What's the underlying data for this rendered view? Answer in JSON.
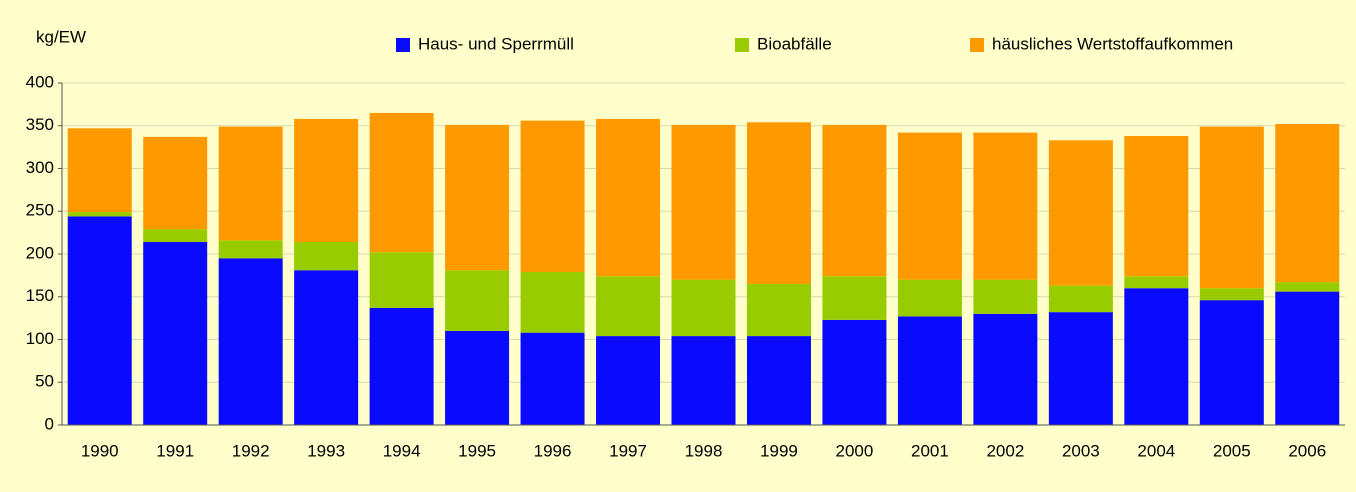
{
  "chart_data": {
    "type": "stacked_bar",
    "ylabel": "kg/EW",
    "categories": [
      "1990",
      "1991",
      "1992",
      "1993",
      "1994",
      "1995",
      "1996",
      "1997",
      "1998",
      "1999",
      "2000",
      "2001",
      "2002",
      "2003",
      "2004",
      "2005",
      "2006"
    ],
    "series": [
      {
        "name": "Haus- und Sperrmüll",
        "color": "#0a0aff",
        "values": [
          244,
          214,
          195,
          181,
          137,
          110,
          108,
          104,
          104,
          104,
          123,
          127,
          130,
          132,
          160,
          146,
          156
        ]
      },
      {
        "name": "Bioabfälle",
        "color": "#99cc00",
        "values": [
          5,
          15,
          21,
          33,
          65,
          71,
          71,
          70,
          66,
          61,
          51,
          43,
          40,
          31,
          14,
          14,
          11
        ]
      },
      {
        "name": "häusliches Wertstoffaufkommen",
        "color": "#ff9900",
        "values": [
          98,
          108,
          133,
          144,
          163,
          170,
          177,
          184,
          181,
          189,
          177,
          172,
          172,
          170,
          164,
          189,
          185
        ]
      }
    ],
    "ylim": [
      0,
      400
    ],
    "yticks": [
      0,
      50,
      100,
      150,
      200,
      250,
      300,
      350,
      400
    ],
    "grid": true
  }
}
